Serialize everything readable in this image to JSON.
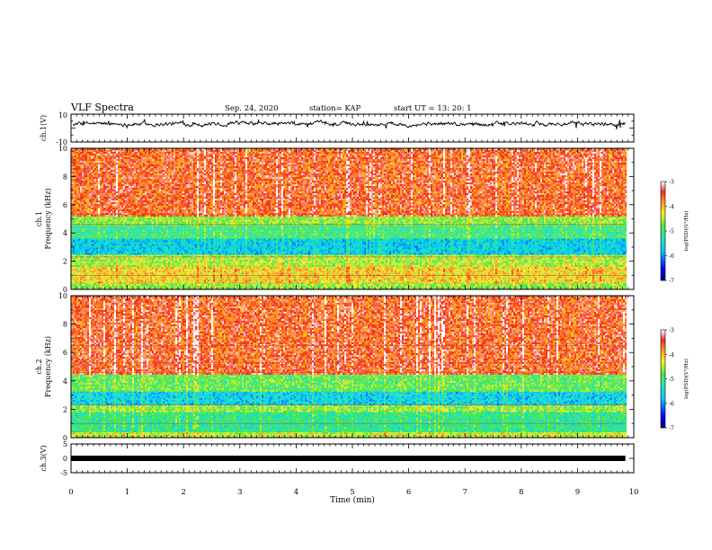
{
  "header": {
    "title": "VLF Spectra",
    "date": "Sep. 24, 2020",
    "station": "station= KAP",
    "start": "start UT =  13: 20: 1"
  },
  "chart_data": [
    {
      "type": "line",
      "panel": "ch1-waveform",
      "ylabel": "ch.1(V)",
      "ylim": [
        -10,
        10
      ],
      "ytick_labels": [
        "10",
        "-10"
      ],
      "xlim": [
        0,
        10
      ],
      "notes": "noisy waveform centred near +3 V, amplitude about ±3 V, trace ends near 9.85 min",
      "x_end": 9.85,
      "baseline": 3
    },
    {
      "type": "heatmap",
      "panel": "ch1-spectrogram",
      "ylabel": "ch.1\nFrequency (kHz)",
      "ylabel_lines": [
        "ch.1",
        "Frequency (kHz)"
      ],
      "ylim": [
        0,
        10
      ],
      "ytick_labels": [
        "0",
        "2",
        "4",
        "6",
        "8",
        "10"
      ],
      "xlim": [
        0,
        10
      ],
      "x_end": 9.85,
      "colorbar": {
        "label": "log(PSD)(V²/Hz)",
        "range": [
          -7,
          -3
        ],
        "ticks": [
          "-3",
          "-4",
          "-5",
          "-6",
          "-7"
        ]
      },
      "bands": [
        {
          "f0": 0.0,
          "f1": 0.5,
          "level": -4.6
        },
        {
          "f0": 0.5,
          "f1": 1.7,
          "level": -4.1
        },
        {
          "f0": 1.7,
          "f1": 2.5,
          "level": -4.5
        },
        {
          "f0": 2.5,
          "f1": 3.6,
          "level": -5.6
        },
        {
          "f0": 3.6,
          "f1": 4.6,
          "level": -5.0
        },
        {
          "f0": 4.6,
          "f1": 5.2,
          "level": -4.6
        },
        {
          "f0": 5.2,
          "f1": 10.0,
          "level": -3.5
        }
      ]
    },
    {
      "type": "heatmap",
      "panel": "ch2-spectrogram",
      "ylabel": "ch.2\nFrequency (kHz)",
      "ylabel_lines": [
        "ch.2",
        "Frequency (kHz)"
      ],
      "ylim": [
        0,
        10
      ],
      "ytick_labels": [
        "0",
        "2",
        "4",
        "6",
        "8",
        "10"
      ],
      "xlim": [
        0,
        10
      ],
      "x_end": 9.85,
      "colorbar": {
        "label": "log(PSD)(V²/Hz)",
        "range": [
          -7,
          -3
        ],
        "ticks": [
          "-3",
          "-4",
          "-5",
          "-6",
          "-7"
        ]
      },
      "bands": [
        {
          "f0": 0.0,
          "f1": 0.5,
          "level": -4.4
        },
        {
          "f0": 0.5,
          "f1": 1.9,
          "level": -5.1
        },
        {
          "f0": 1.9,
          "f1": 2.3,
          "level": -4.6
        },
        {
          "f0": 2.3,
          "f1": 3.3,
          "level": -5.6
        },
        {
          "f0": 3.3,
          "f1": 4.5,
          "level": -4.8
        },
        {
          "f0": 4.5,
          "f1": 10.0,
          "level": -3.5
        }
      ]
    },
    {
      "type": "line",
      "panel": "ch3-waveform",
      "ylabel": "ch.3(V)",
      "ylim": [
        -5,
        5
      ],
      "ytick_labels": [
        "5",
        "0",
        "-5"
      ],
      "xlim": [
        0,
        10
      ],
      "xlabel": "Time (min)",
      "xtick_labels": [
        "0",
        "1",
        "2",
        "3",
        "4",
        "5",
        "6",
        "7",
        "8",
        "9",
        "10"
      ],
      "notes": "flat thick trace near 0 V",
      "baseline": 0,
      "x_end": 9.85
    }
  ]
}
